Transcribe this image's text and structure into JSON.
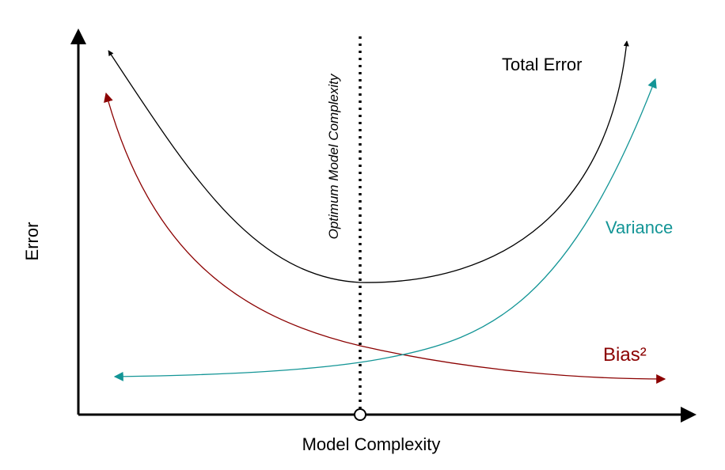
{
  "axes": {
    "x_label": "Model Complexity",
    "y_label": "Error"
  },
  "curves": {
    "total_error": {
      "label": "Total Error",
      "color": "#000000"
    },
    "variance": {
      "label": "Variance",
      "color": "#139596"
    },
    "bias": {
      "label": "Bias²",
      "color": "#8B0000"
    }
  },
  "optimum": {
    "label": "Optimum Model Complexity"
  }
}
